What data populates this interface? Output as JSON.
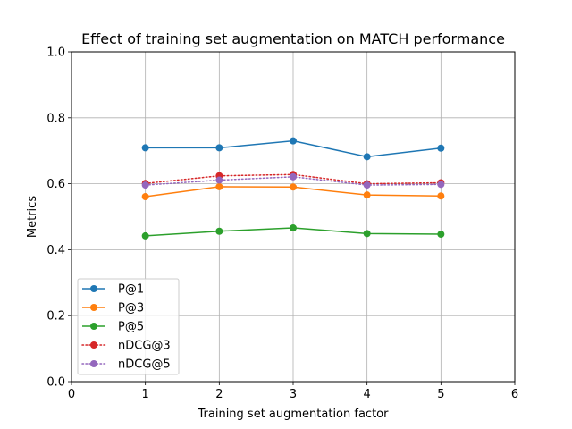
{
  "chart_data": {
    "type": "line",
    "title": "Effect of training set augmentation on MATCH performance",
    "xlabel": "Training set augmentation factor",
    "ylabel": "Metrics",
    "xlim": [
      0,
      6
    ],
    "ylim": [
      0.0,
      1.0
    ],
    "xticks": [
      "0",
      "1",
      "2",
      "3",
      "4",
      "5",
      "6"
    ],
    "yticks": [
      "0.0",
      "0.2",
      "0.4",
      "0.6",
      "0.8",
      "1.0"
    ],
    "grid": true,
    "legend_position": "lower-left",
    "x": [
      1,
      2,
      3,
      4,
      5
    ],
    "series": [
      {
        "name": "P@1",
        "values": [
          0.709,
          0.709,
          0.73,
          0.682,
          0.708
        ],
        "color": "#1f77b4",
        "linestyle": "solid"
      },
      {
        "name": "P@3",
        "values": [
          0.561,
          0.591,
          0.59,
          0.566,
          0.563
        ],
        "color": "#ff7f0e",
        "linestyle": "solid"
      },
      {
        "name": "P@5",
        "values": [
          0.442,
          0.456,
          0.466,
          0.449,
          0.447
        ],
        "color": "#2ca02c",
        "linestyle": "solid"
      },
      {
        "name": "nDCG@3",
        "values": [
          0.601,
          0.624,
          0.628,
          0.6,
          0.603
        ],
        "color": "#d62728",
        "linestyle": "dotted"
      },
      {
        "name": "nDCG@5",
        "values": [
          0.596,
          0.611,
          0.621,
          0.596,
          0.598
        ],
        "color": "#9467bd",
        "linestyle": "dotted"
      }
    ]
  }
}
